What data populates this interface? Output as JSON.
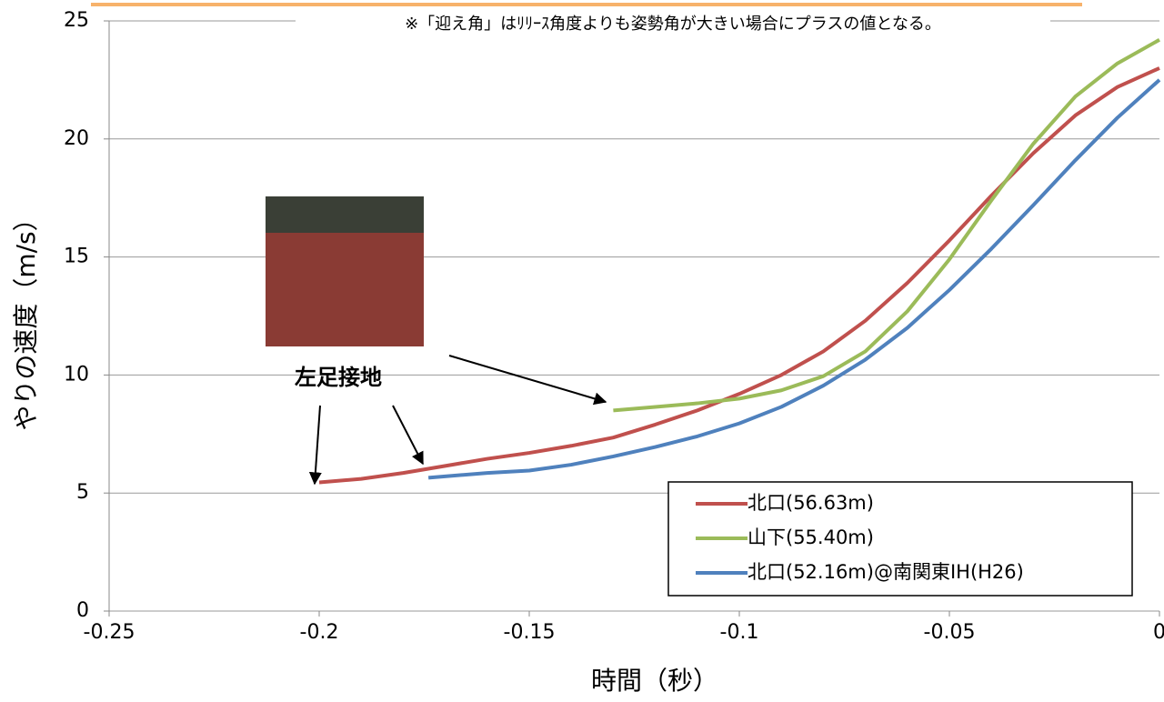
{
  "chart_data": {
    "type": "line",
    "note": "※「迎え角」はﾘﾘｰｽ角度よりも姿勢角が大きい場合にプラスの値となる。",
    "annotation": "左足接地",
    "xlabel": "時間（秒）",
    "ylabel": "やりの速度（m/s）",
    "xlim": [
      -0.25,
      0
    ],
    "ylim": [
      0,
      25
    ],
    "xticks": [
      -0.25,
      -0.2,
      -0.15,
      -0.1,
      -0.05,
      0
    ],
    "yticks": [
      0,
      5,
      10,
      15,
      20,
      25
    ],
    "grid": true,
    "legend": "lower-right",
    "series": [
      {
        "name": "北口(56.63m)",
        "color": "#c0504d",
        "x": [
          -0.2,
          -0.19,
          -0.18,
          -0.17,
          -0.16,
          -0.15,
          -0.14,
          -0.13,
          -0.12,
          -0.11,
          -0.1,
          -0.09,
          -0.08,
          -0.07,
          -0.06,
          -0.05,
          -0.04,
          -0.03,
          -0.02,
          -0.01,
          0
        ],
        "values": [
          5.45,
          5.6,
          5.85,
          6.15,
          6.45,
          6.7,
          7.0,
          7.35,
          7.9,
          8.5,
          9.2,
          10.0,
          11.0,
          12.3,
          13.9,
          15.7,
          17.6,
          19.4,
          21.0,
          22.2,
          23.0
        ]
      },
      {
        "name": "山下(55.40m)",
        "color": "#9bbb59",
        "x": [
          -0.13,
          -0.12,
          -0.11,
          -0.1,
          -0.09,
          -0.08,
          -0.07,
          -0.06,
          -0.05,
          -0.04,
          -0.03,
          -0.02,
          -0.01,
          0
        ],
        "values": [
          8.5,
          8.65,
          8.8,
          9.0,
          9.35,
          9.95,
          11.0,
          12.7,
          14.9,
          17.4,
          19.8,
          21.8,
          23.2,
          24.2
        ]
      },
      {
        "name": "北口(52.16m)@南関東IH(H26)",
        "color": "#4f81bd",
        "x": [
          -0.174,
          -0.16,
          -0.15,
          -0.14,
          -0.13,
          -0.12,
          -0.11,
          -0.1,
          -0.09,
          -0.08,
          -0.07,
          -0.06,
          -0.05,
          -0.04,
          -0.03,
          -0.02,
          -0.01,
          0
        ],
        "values": [
          5.65,
          5.85,
          5.95,
          6.2,
          6.55,
          6.95,
          7.4,
          7.95,
          8.65,
          9.55,
          10.65,
          12.0,
          13.6,
          15.35,
          17.2,
          19.1,
          20.9,
          22.5
        ]
      }
    ]
  }
}
